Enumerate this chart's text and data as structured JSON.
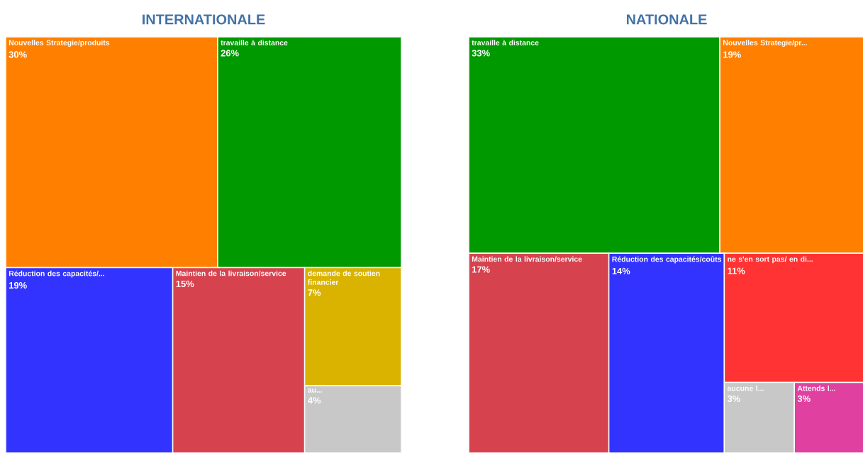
{
  "chart_data": [
    {
      "type": "other",
      "title": "INTERNATIONALE",
      "categories": [
        "Nouvelles Strategie/produits",
        "travaille à distance",
        "Réduction des capacités/...",
        "Maintien de la livraison/service",
        "demande de soutien financier",
        "au..."
      ],
      "values": [
        30,
        26,
        19,
        15,
        7,
        4
      ],
      "value_labels": [
        "30%",
        "26%",
        "19%",
        "15%",
        "7%",
        "4%"
      ],
      "colors": [
        "#ff8000",
        "#009900",
        "#3333ff",
        "#d6434f",
        "#d9b300",
        "#c8c8c8"
      ]
    },
    {
      "type": "other",
      "title": "NATIONALE",
      "categories": [
        "travaille à distance",
        "Nouvelles Strategie/pr...",
        "Maintien de la livraison/service",
        "Réduction des capacités/coûts",
        "ne s'en sort pas/ en di...",
        "aucune l...",
        "Attends l..."
      ],
      "values": [
        33,
        19,
        17,
        14,
        11,
        3,
        3
      ],
      "value_labels": [
        "33%",
        "19%",
        "17%",
        "14%",
        "11%",
        "3%",
        "3%"
      ],
      "colors": [
        "#009900",
        "#ff8000",
        "#d6434f",
        "#3333ff",
        "#ff3333",
        "#c8c8c8",
        "#e040a0"
      ]
    }
  ]
}
